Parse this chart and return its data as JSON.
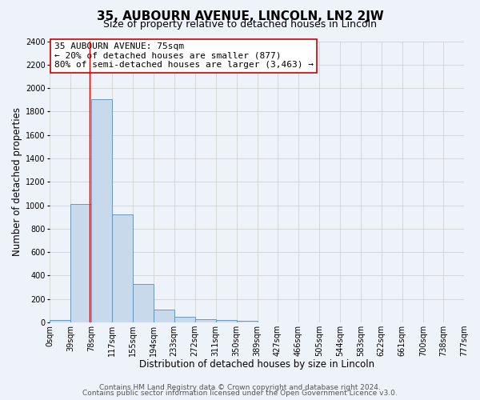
{
  "title": "35, AUBOURN AVENUE, LINCOLN, LN2 2JW",
  "subtitle": "Size of property relative to detached houses in Lincoln",
  "xlabel": "Distribution of detached houses by size in Lincoln",
  "ylabel": "Number of detached properties",
  "footer_lines": [
    "Contains HM Land Registry data © Crown copyright and database right 2024.",
    "Contains public sector information licensed under the Open Government Licence v3.0."
  ],
  "bin_edges": [
    0,
    39,
    78,
    117,
    155,
    194,
    233,
    272,
    311,
    350,
    389,
    427,
    466,
    505,
    544,
    583,
    622,
    661,
    700,
    738,
    777
  ],
  "bin_labels": [
    "0sqm",
    "39sqm",
    "78sqm",
    "117sqm",
    "155sqm",
    "194sqm",
    "233sqm",
    "272sqm",
    "311sqm",
    "350sqm",
    "389sqm",
    "427sqm",
    "466sqm",
    "505sqm",
    "544sqm",
    "583sqm",
    "622sqm",
    "661sqm",
    "700sqm",
    "738sqm",
    "777sqm"
  ],
  "bar_heights": [
    20,
    1010,
    1905,
    920,
    325,
    110,
    50,
    30,
    20,
    15,
    0,
    0,
    0,
    0,
    0,
    0,
    0,
    0,
    0,
    0
  ],
  "bar_color": "#c9d9ec",
  "bar_edge_color": "#5b8db8",
  "grid_color": "#cccccc",
  "bg_color": "#eef2f9",
  "annotation_box_color": "#ffffff",
  "annotation_border_color": "#cc0000",
  "red_line_x": 75,
  "property_size": "75sqm",
  "property_address": "35 AUBOURN AVENUE",
  "pct_smaller": "20%",
  "n_smaller": 877,
  "pct_larger": "80%",
  "n_larger": 3463,
  "ylim": [
    0,
    2400
  ],
  "yticks": [
    0,
    200,
    400,
    600,
    800,
    1000,
    1200,
    1400,
    1600,
    1800,
    2000,
    2200,
    2400
  ],
  "title_fontsize": 11,
  "subtitle_fontsize": 9,
  "annotation_fontsize": 8,
  "axis_label_fontsize": 8.5,
  "tick_fontsize": 7,
  "footer_fontsize": 6.5
}
